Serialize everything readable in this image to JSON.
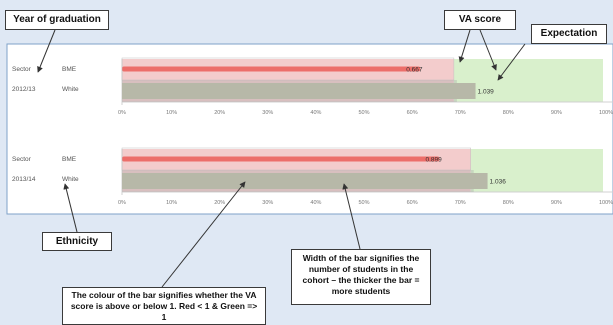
{
  "annotations": {
    "year": "Year of graduation",
    "va_score": "VA score",
    "expectation": "Expectation",
    "ethnicity": "Ethnicity",
    "width": "Width of the bar signifies the number of students in the cohort – the thicker the bar = more students",
    "colour": "The colour of the bar signifies whether the VA score is above or below 1. Red < 1 & Green => 1"
  },
  "colors": {
    "background": "#dfe8f4",
    "panel": "#ffffff",
    "panel_border": "#7fa2c8",
    "below_band": "#f3cccc",
    "above_band": "#d9f0cc",
    "bme_bar": "#ec6e6a",
    "white_bar": "#b7b8a8",
    "expectation_bar": "#a6a6a6"
  },
  "chart_data": [
    {
      "type": "bar",
      "orientation": "horizontal",
      "group_label": "Sector",
      "year": "2012/13",
      "categories": [
        "BME",
        "White"
      ],
      "values": [
        0.667,
        1.039
      ],
      "value_labels": [
        "0.667",
        "1.039"
      ],
      "bar_end_percent": [
        62,
        73.5
      ],
      "bar_color": [
        "red",
        "green"
      ],
      "expectation_percent": 69,
      "xlim": [
        0,
        100
      ],
      "xticks": [
        "0%",
        "10%",
        "20%",
        "30%",
        "40%",
        "50%",
        "60%",
        "70%",
        "80%",
        "90%",
        "100%"
      ]
    },
    {
      "type": "bar",
      "orientation": "horizontal",
      "group_label": "Sector",
      "year": "2013/14",
      "categories": [
        "BME",
        "White"
      ],
      "values": [
        0.899,
        1.036
      ],
      "value_labels": [
        "0.899",
        "1.036"
      ],
      "bar_end_percent": [
        66,
        76
      ],
      "bar_color": [
        "red",
        "green"
      ],
      "expectation_percent": 72.5,
      "xlim": [
        0,
        100
      ],
      "xticks": [
        "0%",
        "10%",
        "20%",
        "30%",
        "40%",
        "50%",
        "60%",
        "70%",
        "80%",
        "90%",
        "100%"
      ]
    }
  ]
}
